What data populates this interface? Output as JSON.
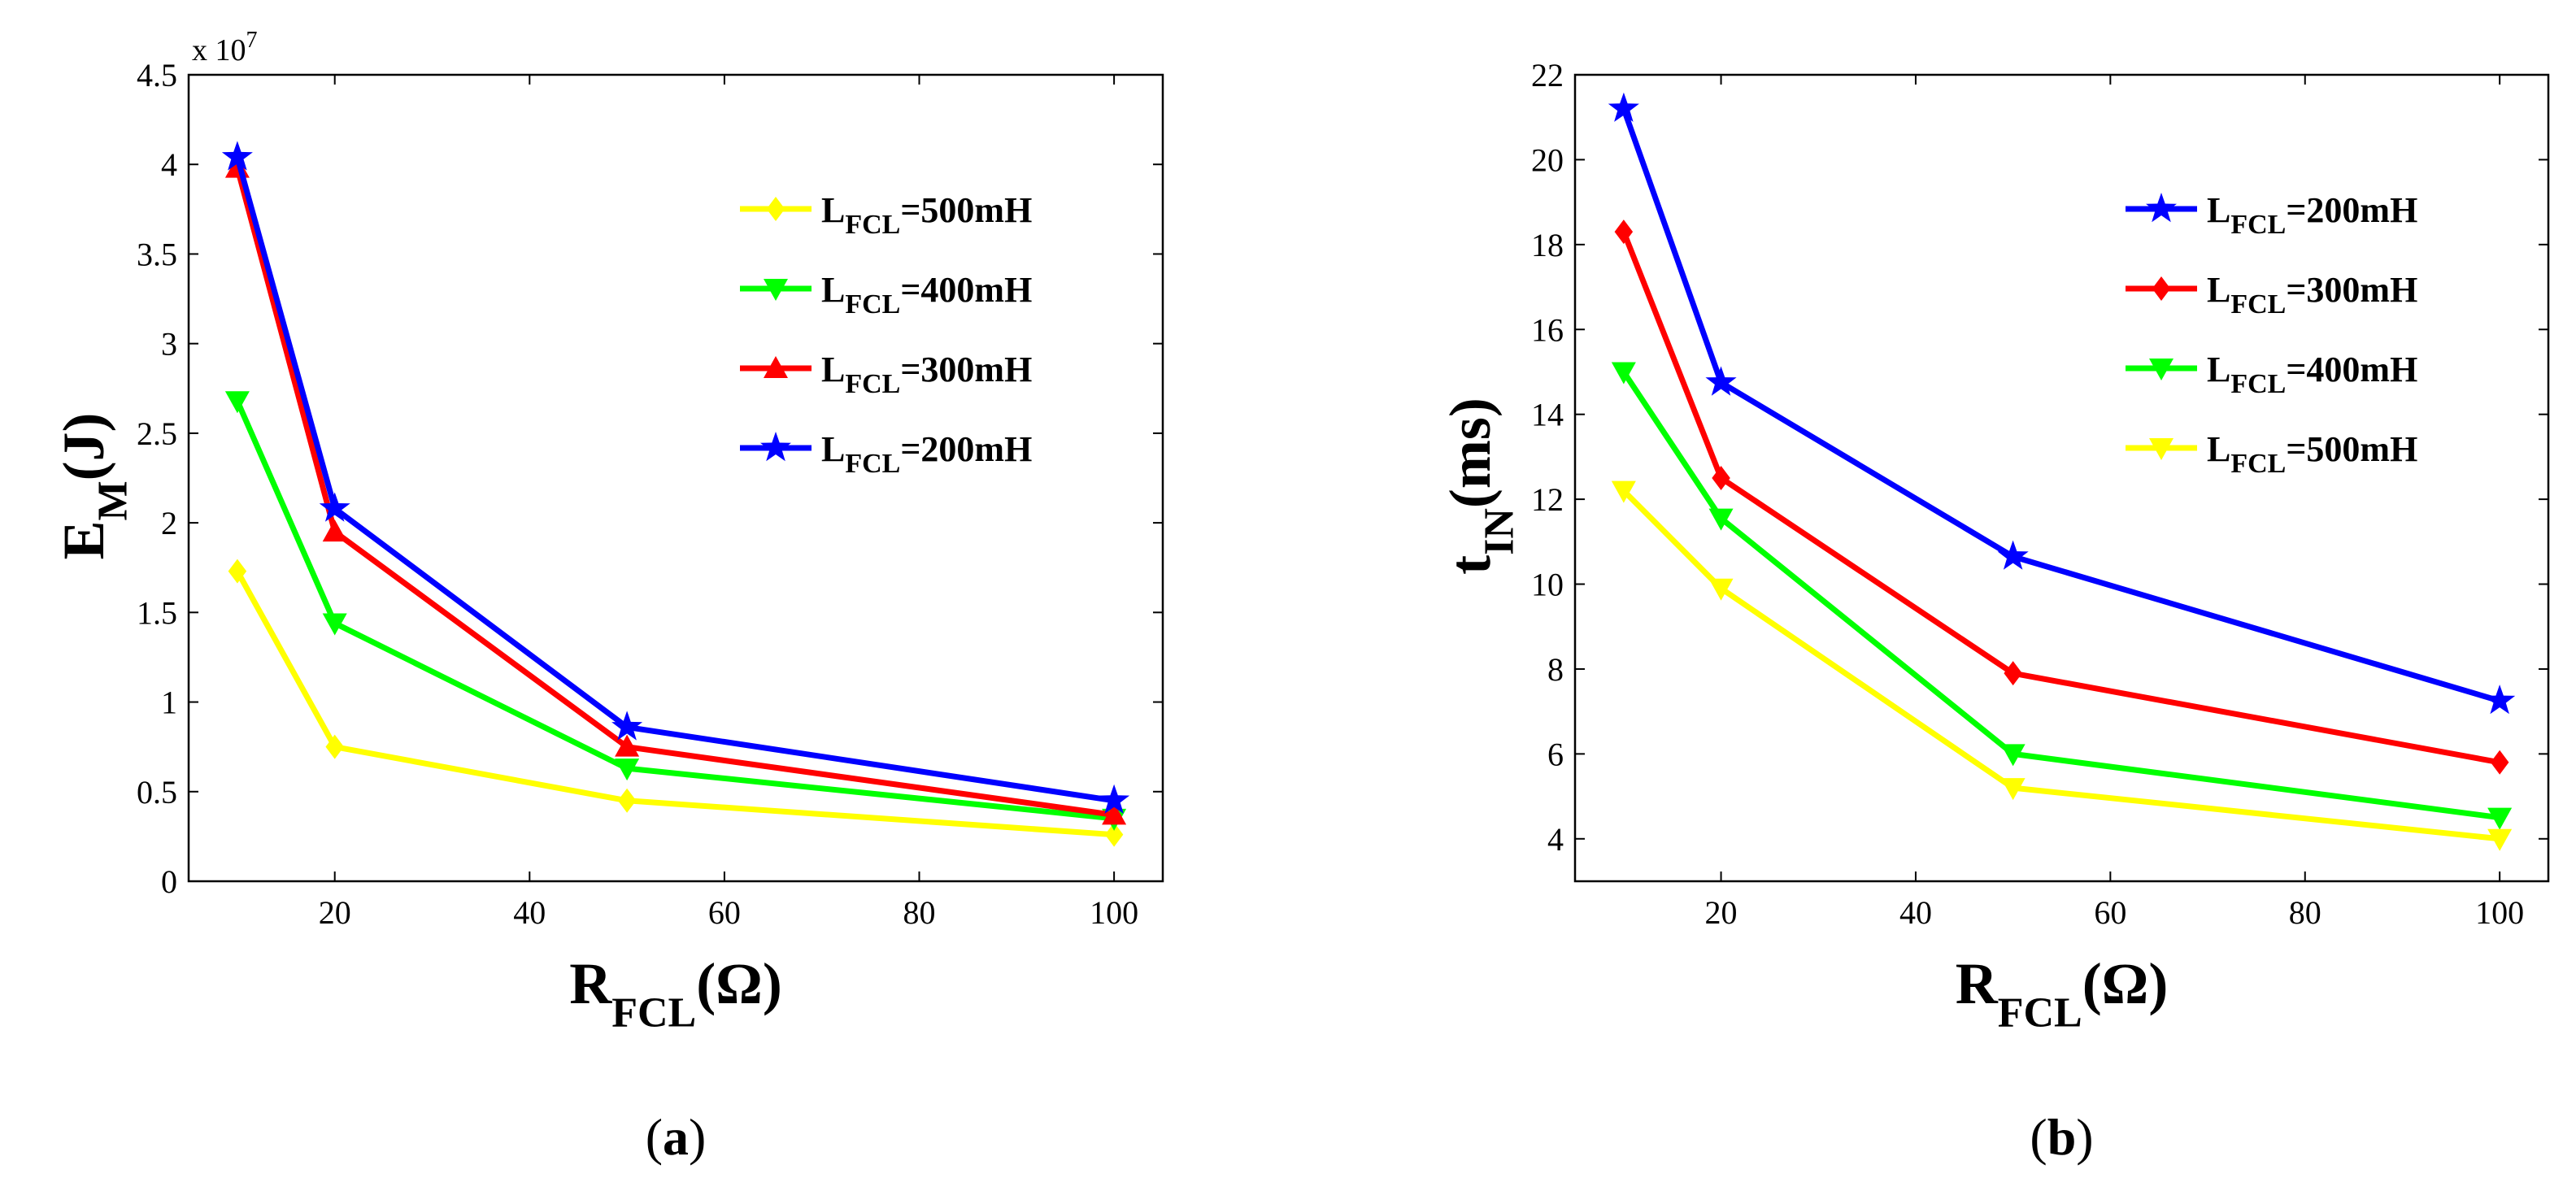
{
  "chart_data": [
    {
      "id": "a",
      "type": "line",
      "caption_letter": "a",
      "xlabel": {
        "main": "R",
        "sub": "FCL",
        "unit": "(Ω)"
      },
      "ylabel": {
        "main": "E",
        "sub": "M",
        "unit": "(J)"
      },
      "y_multiplier": {
        "base": "x 10",
        "exp": "7"
      },
      "x": [
        10,
        20,
        50,
        100
      ],
      "xlim": [
        5,
        105
      ],
      "ylim": [
        0,
        4.5
      ],
      "xticks": [
        20,
        40,
        60,
        80,
        100
      ],
      "yticks": [
        0,
        0.5,
        1,
        1.5,
        2,
        2.5,
        3,
        3.5,
        4,
        4.5
      ],
      "ytick_labels": [
        "0",
        "0.5",
        "1",
        "1.5",
        "2",
        "2.5",
        "3",
        "3.5",
        "4",
        "4.5"
      ],
      "legend_location": "top-right",
      "series": [
        {
          "name": "L_FCL=500mH",
          "label_main": "L",
          "label_sub": "FCL",
          "label_rest": "=500mH",
          "color": "#ffff00",
          "marker": "diamond",
          "values": [
            1.73,
            0.75,
            0.45,
            0.26
          ]
        },
        {
          "name": "L_FCL=400mH",
          "label_main": "L",
          "label_sub": "FCL",
          "label_rest": "=400mH",
          "color": "#00ff00",
          "marker": "triangle-down",
          "values": [
            2.68,
            1.44,
            0.63,
            0.35
          ]
        },
        {
          "name": "L_FCL=300mH",
          "label_main": "L",
          "label_sub": "FCL",
          "label_rest": "=300mH",
          "color": "#ff0000",
          "marker": "triangle-up",
          "values": [
            3.98,
            1.95,
            0.75,
            0.37
          ]
        },
        {
          "name": "L_FCL=200mH",
          "label_main": "L",
          "label_sub": "FCL",
          "label_rest": "=200mH",
          "color": "#0000ff",
          "marker": "star",
          "values": [
            4.04,
            2.08,
            0.86,
            0.45
          ]
        }
      ]
    },
    {
      "id": "b",
      "type": "line",
      "caption_letter": "b",
      "xlabel": {
        "main": "R",
        "sub": "FCL",
        "unit": "(Ω)"
      },
      "ylabel": {
        "main": "t",
        "sub": "IN",
        "unit": "(ms)"
      },
      "x": [
        10,
        20,
        50,
        100
      ],
      "xlim": [
        5,
        105
      ],
      "ylim": [
        3,
        22
      ],
      "xticks": [
        20,
        40,
        60,
        80,
        100
      ],
      "yticks": [
        4,
        6,
        8,
        10,
        12,
        14,
        16,
        18,
        20,
        22
      ],
      "ytick_labels": [
        "4",
        "6",
        "8",
        "10",
        "12",
        "14",
        "16",
        "18",
        "20",
        "22"
      ],
      "legend_location": "top-right",
      "series": [
        {
          "name": "L_FCL=200mH",
          "label_main": "L",
          "label_sub": "FCL",
          "label_rest": "=200mH",
          "color": "#0000ff",
          "marker": "star",
          "values": [
            21.2,
            14.75,
            10.65,
            7.25
          ]
        },
        {
          "name": "L_FCL=300mH",
          "label_main": "L",
          "label_sub": "FCL",
          "label_rest": "=300mH",
          "color": "#ff0000",
          "marker": "diamond",
          "values": [
            18.3,
            12.5,
            7.9,
            5.8
          ]
        },
        {
          "name": "L_FCL=400mH",
          "label_main": "L",
          "label_sub": "FCL",
          "label_rest": "=400mH",
          "color": "#00ff00",
          "marker": "triangle-down",
          "values": [
            15.0,
            11.55,
            6.0,
            4.5
          ]
        },
        {
          "name": "L_FCL=500mH",
          "label_main": "L",
          "label_sub": "FCL",
          "label_rest": "=500mH",
          "color": "#ffff00",
          "marker": "triangle-down",
          "values": [
            12.2,
            9.9,
            5.2,
            4.0
          ]
        }
      ]
    }
  ]
}
